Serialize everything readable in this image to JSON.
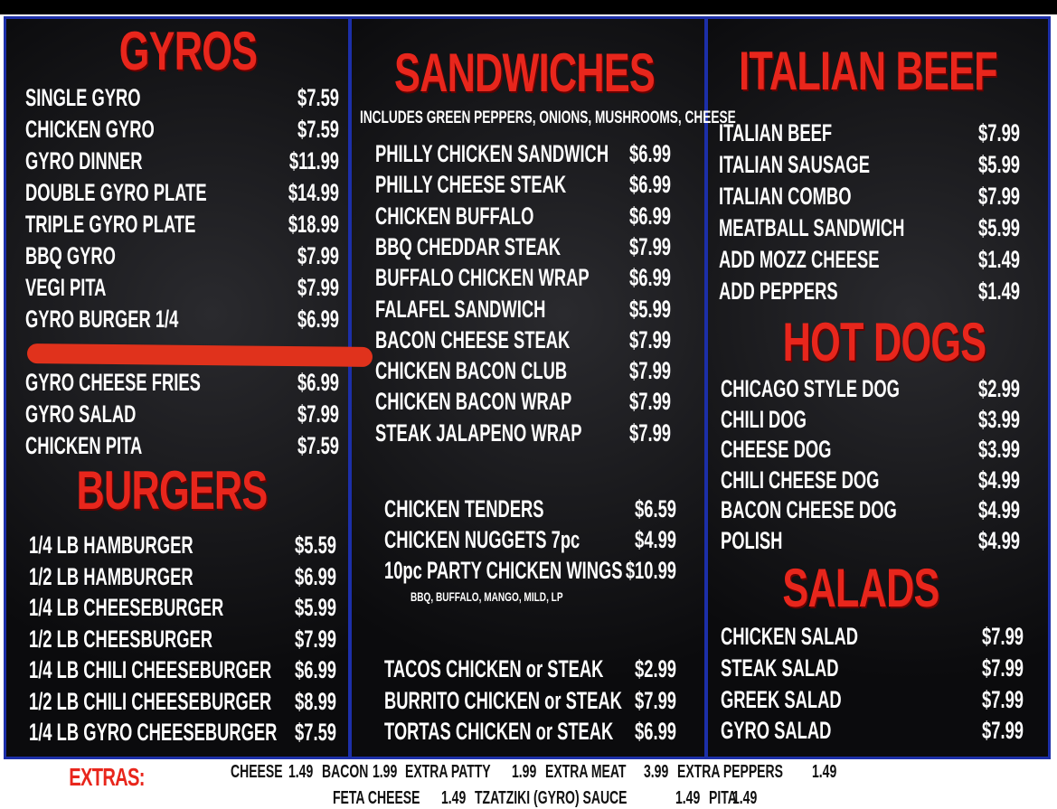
{
  "gyros": {
    "title": "GYROS",
    "items": [
      {
        "name": "SINGLE GYRO",
        "price": "$7.59"
      },
      {
        "name": "CHICKEN GYRO",
        "price": "$7.59"
      },
      {
        "name": "GYRO DINNER",
        "price": "$11.99"
      },
      {
        "name": "DOUBLE GYRO PLATE",
        "price": "$14.99"
      },
      {
        "name": "TRIPLE GYRO PLATE",
        "price": "$18.99"
      },
      {
        "name": "BBQ GYRO",
        "price": "$7.99"
      },
      {
        "name": "VEGI PITA",
        "price": "$7.99"
      },
      {
        "name": "GYRO BURGER 1/4",
        "price": "$6.99"
      },
      {
        "name": "GYRO CHEESE FRIES",
        "price": "$6.99"
      },
      {
        "name": "GYRO SALAD",
        "price": "$7.99"
      },
      {
        "name": "CHICKEN PITA",
        "price": "$7.59"
      }
    ]
  },
  "burgers": {
    "title": "BURGERS",
    "items": [
      {
        "name": "1/4 LB HAMBURGER",
        "price": "$5.59"
      },
      {
        "name": "1/2 LB HAMBURGER",
        "price": "$6.99"
      },
      {
        "name": "1/4 LB CHEESEBURGER",
        "price": "$5.99"
      },
      {
        "name": "1/2 LB CHEESBURGER",
        "price": "$7.99"
      },
      {
        "name": "1/4 LB CHILI CHEESEBURGER",
        "price": "$6.99"
      },
      {
        "name": "1/2 LB CHILI CHEESEBURGER",
        "price": "$8.99"
      },
      {
        "name": "1/4 LB GYRO CHEESEBURGER",
        "price": "$7.59"
      }
    ]
  },
  "sandwiches": {
    "title": "SANDWICHES",
    "note": "INCLUDES GREEN PEPPERS, ONIONS, MUSHROOMS, CHEESE",
    "items": [
      {
        "name": "PHILLY CHICKEN SANDWICH",
        "price": "$6.99"
      },
      {
        "name": "PHILLY CHEESE STEAK",
        "price": "$6.99"
      },
      {
        "name": "CHICKEN BUFFALO",
        "price": "$6.99"
      },
      {
        "name": "BBQ CHEDDAR STEAK",
        "price": "$7.99"
      },
      {
        "name": "BUFFALO CHICKEN WRAP",
        "price": "$6.99"
      },
      {
        "name": "FALAFEL SANDWICH",
        "price": "$5.99"
      },
      {
        "name": "BACON CHEESE STEAK",
        "price": "$7.99"
      },
      {
        "name": "CHICKEN BACON CLUB",
        "price": "$7.99"
      },
      {
        "name": "CHICKEN BACON WRAP",
        "price": "$7.99"
      },
      {
        "name": "STEAK JALAPENO WRAP",
        "price": "$7.99"
      }
    ]
  },
  "chicken": {
    "note": "BBQ, BUFFALO, MANGO, MILD, LP",
    "items": [
      {
        "name": "CHICKEN TENDERS",
        "price": "$6.59"
      },
      {
        "name": "CHICKEN NUGGETS 7pc",
        "price": "$4.99"
      },
      {
        "name": "10pc PARTY CHICKEN WINGS",
        "price": "$10.99"
      }
    ]
  },
  "mexican": {
    "items": [
      {
        "name": "TACOS CHICKEN or STEAK",
        "price": "$2.99"
      },
      {
        "name": "BURRITO CHICKEN or STEAK",
        "price": "$7.99"
      },
      {
        "name": "TORTAS CHICKEN or STEAK",
        "price": "$6.99"
      }
    ]
  },
  "italian_beef": {
    "title": "ITALIAN BEEF",
    "items": [
      {
        "name": "ITALIAN BEEF",
        "price": "$7.99"
      },
      {
        "name": "ITALIAN SAUSAGE",
        "price": "$5.99"
      },
      {
        "name": "ITALIAN COMBO",
        "price": "$7.99"
      },
      {
        "name": "MEATBALL SANDWICH",
        "price": "$5.99"
      },
      {
        "name": "ADD MOZZ CHEESE",
        "price": "$1.49"
      },
      {
        "name": "ADD PEPPERS",
        "price": "$1.49"
      }
    ]
  },
  "hot_dogs": {
    "title": "HOT DOGS",
    "items": [
      {
        "name": "CHICAGO STYLE DOG",
        "price": "$2.99"
      },
      {
        "name": "CHILI DOG",
        "price": "$3.99"
      },
      {
        "name": "CHEESE DOG",
        "price": "$3.99"
      },
      {
        "name": "CHILI CHEESE DOG",
        "price": "$4.99"
      },
      {
        "name": "BACON CHEESE DOG",
        "price": "$4.99"
      },
      {
        "name": "POLISH",
        "price": "$4.99"
      }
    ]
  },
  "salads": {
    "title": "SALADS",
    "items": [
      {
        "name": "CHICKEN SALAD",
        "price": "$7.99"
      },
      {
        "name": "STEAK SALAD",
        "price": "$7.99"
      },
      {
        "name": "GREEK SALAD",
        "price": "$7.99"
      },
      {
        "name": "GYRO SALAD",
        "price": "$7.99"
      }
    ]
  },
  "extras": {
    "label": "EXTRAS:",
    "rows": [
      [
        {
          "name": "CHEESE",
          "price": "1.49"
        },
        {
          "name": "BACON",
          "price": "1.99"
        },
        {
          "name": "EXTRA PATTY",
          "price": "1.99"
        },
        {
          "name": "EXTRA MEAT",
          "price": "3.99"
        },
        {
          "name": "EXTRA PEPPERS",
          "price": "1.49"
        }
      ],
      [
        {
          "name": "FETA CHEESE",
          "price": "1.49"
        },
        {
          "name": "TZATZIKI (GYRO) SAUCE",
          "price": "1.49"
        },
        {
          "name": "PITA",
          "price": "1.49"
        }
      ]
    ]
  }
}
